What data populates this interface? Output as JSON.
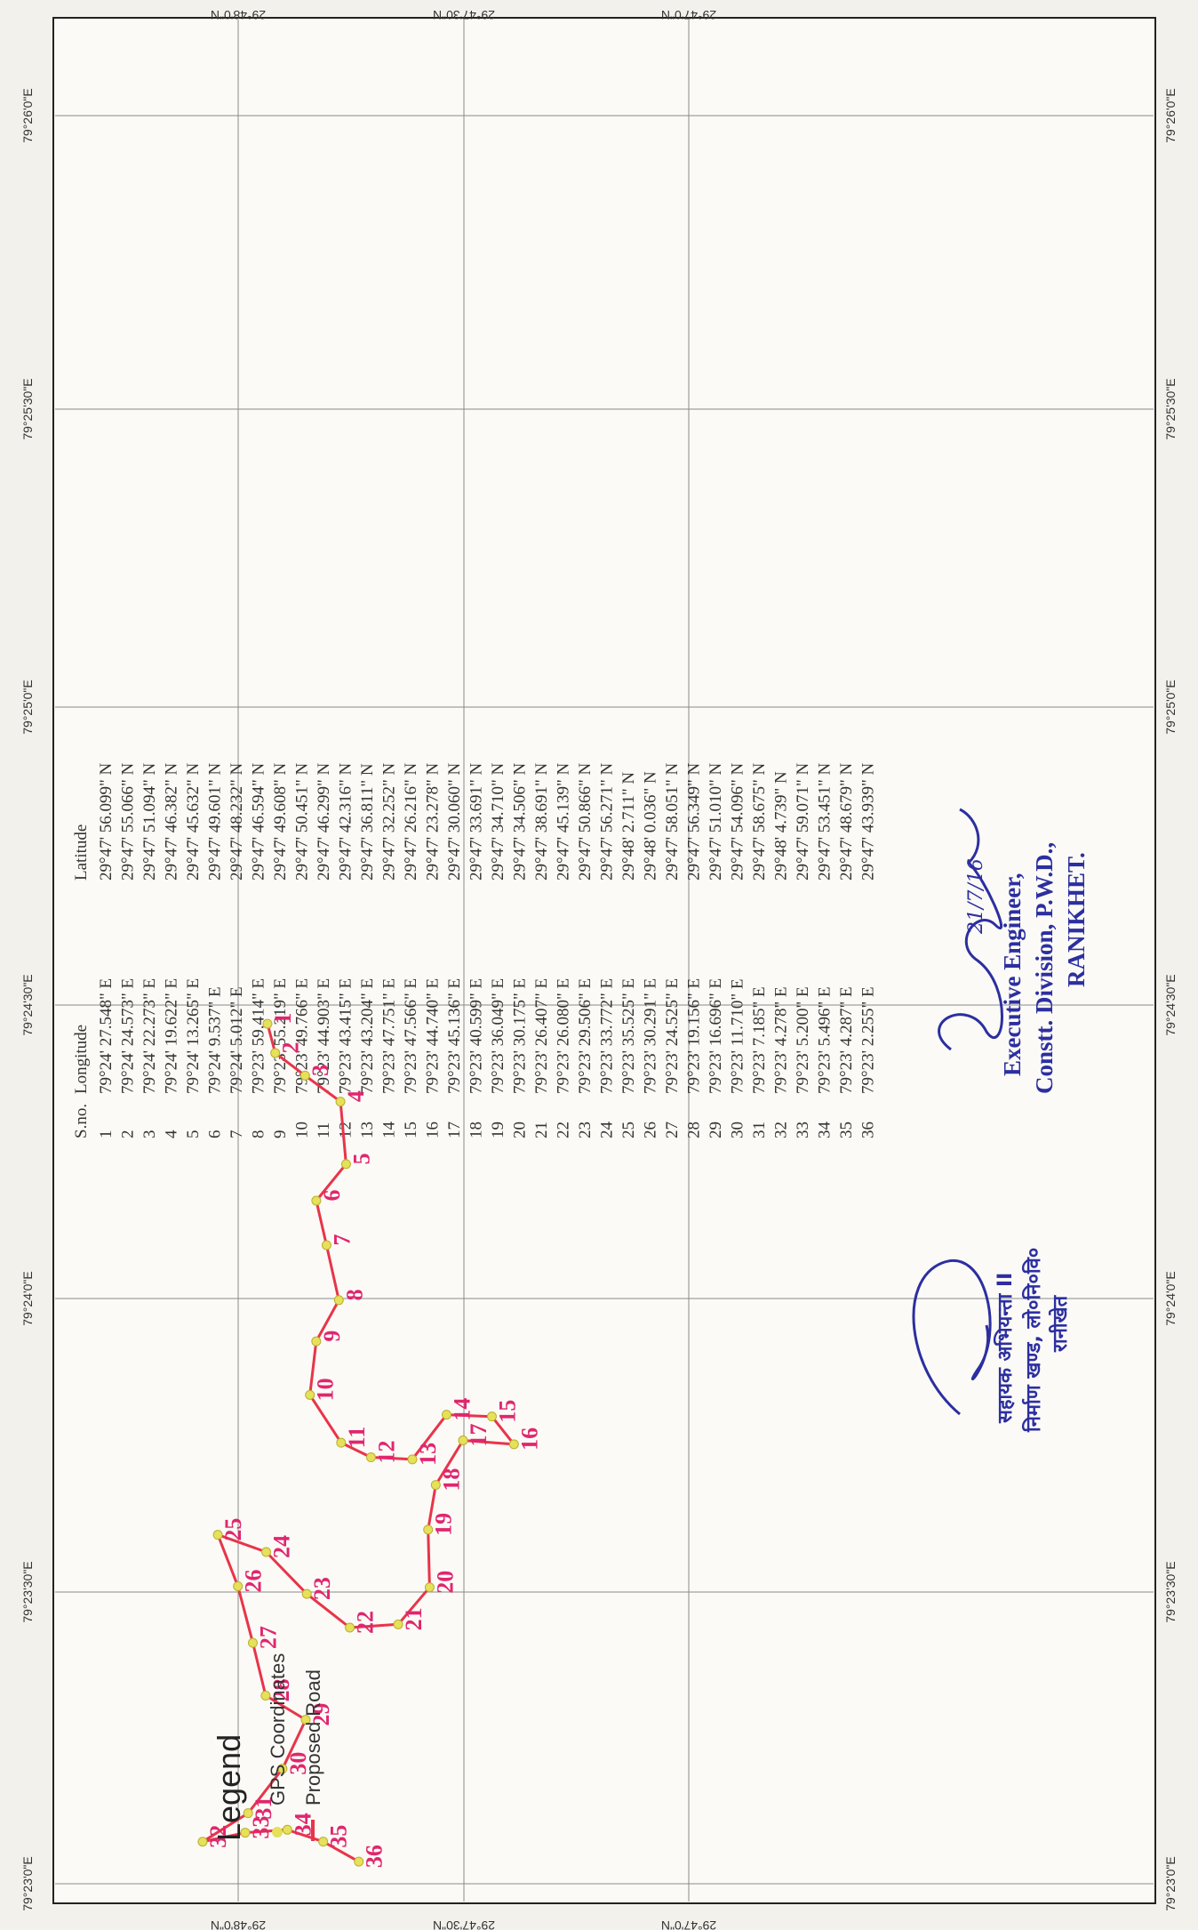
{
  "map": {
    "grid_top_labels": [
      "29°48'0\"N",
      "29°47'30\"N",
      "29°47'0\"N"
    ],
    "grid_side_labels": [
      "79°23'0\"E",
      "79°23'30\"E",
      "79°24'0\"E",
      "79°24'30\"E",
      "79°25'0\"E",
      "79°25'30\"E",
      "79°26'0\"E"
    ],
    "legend": {
      "title": "Legend",
      "items": [
        {
          "label": "GPS Coordinates",
          "color": "#e6e05a"
        },
        {
          "label": "Proposed Road",
          "color": "#e8344a"
        }
      ]
    },
    "colors": {
      "road": "#e8344a",
      "gps_point": "#e6e05a",
      "point_label": "#e0266e",
      "ink": "#2c2fa0"
    }
  },
  "table": {
    "headers": [
      "S.no.",
      "Longitude",
      "Latitude"
    ],
    "rows": [
      [
        "1",
        "79°24' 27.548\" E",
        "29°47' 56.099\" N"
      ],
      [
        "2",
        "79°24' 24.573\" E",
        "29°47' 55.066\" N"
      ],
      [
        "3",
        "79°24' 22.273\" E",
        "29°47' 51.094\" N"
      ],
      [
        "4",
        "79°24' 19.622\" E",
        "29°47' 46.382\" N"
      ],
      [
        "5",
        "79°24' 13.265\" E",
        "29°47' 45.632\" N"
      ],
      [
        "6",
        "79°24' 9.537\" E",
        "29°47' 49.601\" N"
      ],
      [
        "7",
        "79°24' 5.012\" E",
        "29°47' 48.232\" N"
      ],
      [
        "8",
        "79°23' 59.414\" E",
        "29°47' 46.594\" N"
      ],
      [
        "9",
        "79°23' 55.219\" E",
        "29°47' 49.608\" N"
      ],
      [
        "10",
        "79°23' 49.766\" E",
        "29°47' 50.451\" N"
      ],
      [
        "11",
        "79°23' 44.903\" E",
        "29°47' 46.299\" N"
      ],
      [
        "12",
        "79°23' 43.415\" E",
        "29°47' 42.316\" N"
      ],
      [
        "13",
        "79°23' 43.204\" E",
        "29°47' 36.811\" N"
      ],
      [
        "14",
        "79°23' 47.751\" E",
        "29°47' 32.252\" N"
      ],
      [
        "15",
        "79°23' 47.566\" E",
        "29°47' 26.216\" N"
      ],
      [
        "16",
        "79°23' 44.740\" E",
        "29°47' 23.278\" N"
      ],
      [
        "17",
        "79°23' 45.136\" E",
        "29°47' 30.060\" N"
      ],
      [
        "18",
        "79°23' 40.599\" E",
        "29°47' 33.691\" N"
      ],
      [
        "19",
        "79°23' 36.049\" E",
        "29°47' 34.710\" N"
      ],
      [
        "20",
        "79°23' 30.175\" E",
        "29°47' 34.506\" N"
      ],
      [
        "21",
        "79°23' 26.407\" E",
        "29°47' 38.691\" N"
      ],
      [
        "22",
        "79°23' 26.080\" E",
        "29°47' 45.139\" N"
      ],
      [
        "23",
        "79°23' 29.506\" E",
        "29°47' 50.866\" N"
      ],
      [
        "24",
        "79°23' 33.772\" E",
        "29°47' 56.271\" N"
      ],
      [
        "25",
        "79°23' 35.525\" E",
        "29°48' 2.711\" N"
      ],
      [
        "26",
        "79°23' 30.291\" E",
        "29°48' 0.036\" N"
      ],
      [
        "27",
        "79°23' 24.525\" E",
        "29°47' 58.051\" N"
      ],
      [
        "28",
        "79°23' 19.156\" E",
        "29°47' 56.349\" N"
      ],
      [
        "29",
        "79°23' 16.696\" E",
        "29°47' 51.010\" N"
      ],
      [
        "30",
        "79°23' 11.710\" E",
        "29°47' 54.096\" N"
      ],
      [
        "31",
        "79°23' 7.185\" E",
        "29°47' 58.675\" N"
      ],
      [
        "32",
        "79°23' 4.278\" E",
        "29°48' 4.739\" N"
      ],
      [
        "33",
        "79°23' 5.200\" E",
        "29°47' 59.071\" N"
      ],
      [
        "34",
        "79°23' 5.496\" E",
        "29°47' 53.451\" N"
      ],
      [
        "35",
        "79°23' 4.287\" E",
        "29°47' 48.679\" N"
      ],
      [
        "36",
        "79°23' 2.255\" E",
        "29°47' 43.939\" N"
      ]
    ]
  },
  "signature_block": {
    "lines": [
      "Executive Engineer,",
      "Constt. Division, P.W.D.,",
      "RANIKHET."
    ],
    "handwriting": "21/7/16"
  },
  "stamp": {
    "lines": [
      "सहायक अभियन्ता II",
      "निर्माण खण्ड, लो०नि०वि०",
      "रानीखेत"
    ]
  }
}
